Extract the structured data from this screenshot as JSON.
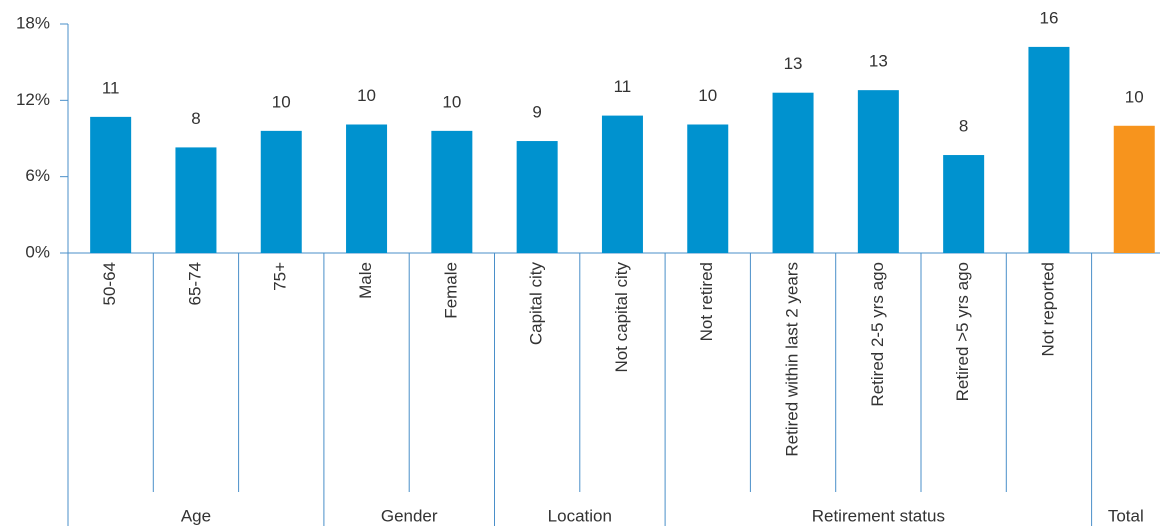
{
  "chart_data": {
    "type": "bar",
    "ylim": [
      0,
      18
    ],
    "yticks": [
      {
        "value": 0,
        "label": "0%"
      },
      {
        "value": 6,
        "label": "6%"
      },
      {
        "value": 12,
        "label": "12%"
      },
      {
        "value": 18,
        "label": "18%"
      }
    ],
    "groups": [
      {
        "label": "Age",
        "color": "#0092cf",
        "categories": [
          "50-64",
          "65-74",
          "75+"
        ],
        "values": [
          10.7,
          8.3,
          9.6
        ],
        "value_labels": [
          "11",
          "8",
          "10"
        ]
      },
      {
        "label": "Gender",
        "color": "#0092cf",
        "categories": [
          "Male",
          "Female"
        ],
        "values": [
          10.1,
          9.6
        ],
        "value_labels": [
          "10",
          "10"
        ]
      },
      {
        "label": "Location",
        "color": "#0092cf",
        "categories": [
          "Capital city",
          "Not capital city"
        ],
        "values": [
          8.8,
          10.8
        ],
        "value_labels": [
          "9",
          "11"
        ]
      },
      {
        "label": "Retirement status",
        "color": "#0092cf",
        "categories": [
          "Not retired",
          "Retired within last 2 years",
          "Retired 2-5 yrs ago",
          "Retired >5 yrs ago",
          "Not reported"
        ],
        "values": [
          10.1,
          12.6,
          12.8,
          7.7,
          16.2
        ],
        "value_labels": [
          "10",
          "13",
          "13",
          "8",
          "16"
        ]
      },
      {
        "label": "Total",
        "color": "#f7941d",
        "categories": [
          null
        ],
        "values": [
          10.0
        ],
        "value_labels": [
          "10"
        ]
      }
    ]
  }
}
